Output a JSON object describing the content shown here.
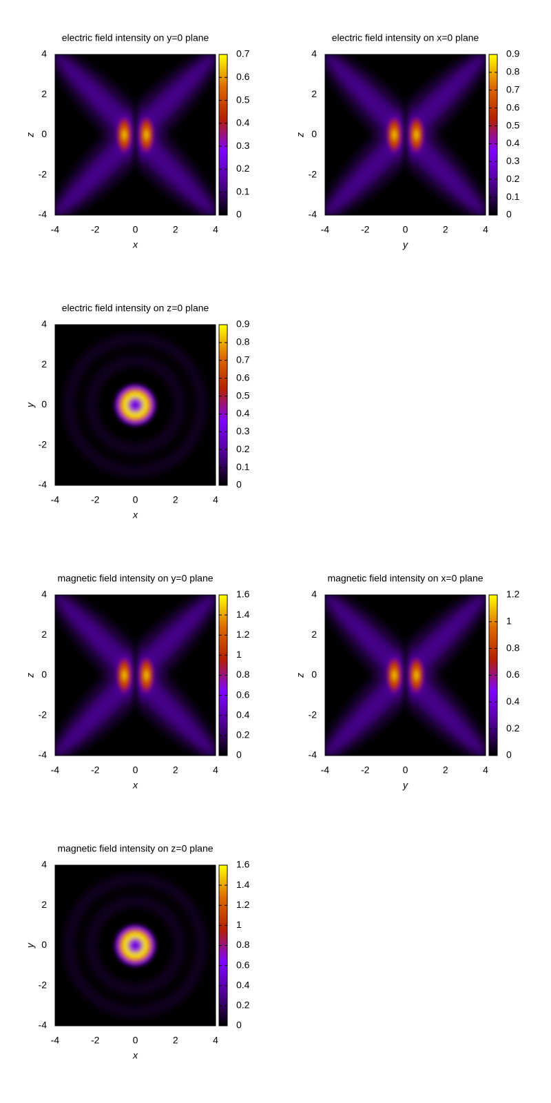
{
  "chart_data": [
    {
      "type": "heatmap",
      "title": "electric field intensity on y=0 plane",
      "xlabel": "x",
      "ylabel": "z",
      "xlim": [
        -4,
        4
      ],
      "ylim": [
        -4,
        4
      ],
      "xticks": [
        -4,
        -2,
        0,
        2,
        4
      ],
      "yticks": [
        -4,
        -2,
        0,
        2,
        4
      ],
      "clim": [
        0,
        0.7
      ],
      "cticks": [
        0,
        0.1,
        0.2,
        0.3,
        0.4,
        0.5,
        0.6,
        0.7
      ],
      "colormap": [
        "#000000",
        "#500096",
        "#8004ff",
        "#b42000",
        "#dd6b00",
        "#ffff00"
      ]
    },
    {
      "type": "heatmap",
      "title": "electric field intensity on x=0 plane",
      "xlabel": "y",
      "ylabel": "z",
      "xlim": [
        -4,
        4
      ],
      "ylim": [
        -4,
        4
      ],
      "xticks": [
        -4,
        -2,
        0,
        2,
        4
      ],
      "yticks": [
        -4,
        -2,
        0,
        2,
        4
      ],
      "clim": [
        0,
        0.9
      ],
      "cticks": [
        0,
        0.1,
        0.2,
        0.3,
        0.4,
        0.5,
        0.6,
        0.7,
        0.8,
        0.9
      ],
      "colormap": [
        "#000000",
        "#500096",
        "#8004ff",
        "#b42000",
        "#dd6b00",
        "#ffff00"
      ]
    },
    {
      "type": "heatmap",
      "title": "electric field intensity on z=0 plane",
      "xlabel": "x",
      "ylabel": "y",
      "xlim": [
        -4,
        4
      ],
      "ylim": [
        -4,
        4
      ],
      "xticks": [
        -4,
        -2,
        0,
        2,
        4
      ],
      "yticks": [
        -4,
        -2,
        0,
        2,
        4
      ],
      "clim": [
        0,
        0.9
      ],
      "cticks": [
        0,
        0.1,
        0.2,
        0.3,
        0.4,
        0.5,
        0.6,
        0.7,
        0.8,
        0.9
      ],
      "colormap": [
        "#000000",
        "#500096",
        "#8004ff",
        "#b42000",
        "#dd6b00",
        "#ffff00"
      ]
    },
    {
      "type": "heatmap",
      "title": "magnetic field intensity on y=0 plane",
      "xlabel": "x",
      "ylabel": "z",
      "xlim": [
        -4,
        4
      ],
      "ylim": [
        -4,
        4
      ],
      "xticks": [
        -4,
        -2,
        0,
        2,
        4
      ],
      "yticks": [
        -4,
        -2,
        0,
        2,
        4
      ],
      "clim": [
        0,
        1.6
      ],
      "cticks": [
        0,
        0.2,
        0.4,
        0.6,
        0.8,
        1,
        1.2,
        1.4,
        1.6
      ],
      "colormap": [
        "#000000",
        "#500096",
        "#8004ff",
        "#b42000",
        "#dd6b00",
        "#ffff00"
      ]
    },
    {
      "type": "heatmap",
      "title": "magnetic field intensity on x=0 plane",
      "xlabel": "y",
      "ylabel": "z",
      "xlim": [
        -4,
        4
      ],
      "ylim": [
        -4,
        4
      ],
      "xticks": [
        -4,
        -2,
        0,
        2,
        4
      ],
      "yticks": [
        -4,
        -2,
        0,
        2,
        4
      ],
      "clim": [
        0,
        1.2
      ],
      "cticks": [
        0,
        0.2,
        0.4,
        0.6,
        0.8,
        1,
        1.2
      ],
      "colormap": [
        "#000000",
        "#500096",
        "#8004ff",
        "#b42000",
        "#dd6b00",
        "#ffff00"
      ]
    },
    {
      "type": "heatmap",
      "title": "magnetic field intensity on z=0 plane",
      "xlabel": "x",
      "ylabel": "y",
      "xlim": [
        -4,
        4
      ],
      "ylim": [
        -4,
        4
      ],
      "xticks": [
        -4,
        -2,
        0,
        2,
        4
      ],
      "yticks": [
        -4,
        -2,
        0,
        2,
        4
      ],
      "clim": [
        0,
        1.6
      ],
      "cticks": [
        0,
        0.2,
        0.4,
        0.6,
        0.8,
        1,
        1.2,
        1.4,
        1.6
      ],
      "colormap": [
        "#000000",
        "#500096",
        "#8004ff",
        "#b42000",
        "#dd6b00",
        "#ffff00"
      ]
    }
  ]
}
